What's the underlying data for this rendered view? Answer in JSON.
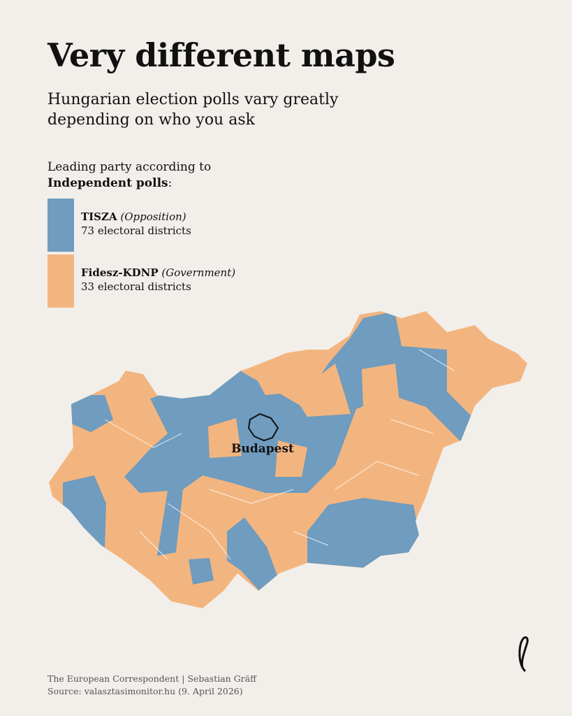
{
  "header": {
    "title": "Very different maps",
    "subtitle_line1": "Hungarian election polls vary greatly",
    "subtitle_line2": "depending on who you ask"
  },
  "legend": {
    "heading_line1": "Leading party according to",
    "heading_bold": "Independent polls",
    "heading_suffix": ":",
    "items": [
      {
        "party": "TISZA",
        "role": "(Opposition)",
        "districts": "73 electoral districts",
        "color": "#6f9cbf"
      },
      {
        "party": "Fidesz-KDNP",
        "role": "(Government)",
        "districts": "33 electoral districts",
        "color": "#f3b57f"
      }
    ]
  },
  "map": {
    "label": "Budapest"
  },
  "footer": {
    "line1": "The European Correspondent | Sebastian Gräff",
    "line2": "Source: valasztasimonitor.hu (9. April 2026)"
  }
}
